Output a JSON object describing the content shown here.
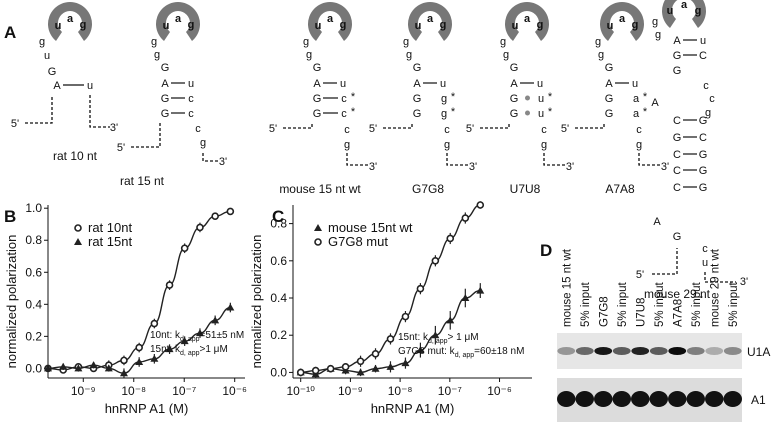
{
  "panel_labels": [
    "A",
    "B",
    "C",
    "D"
  ],
  "structures": [
    {
      "caption": "rat 10 nt",
      "letters": [
        "g",
        "u",
        "u",
        "a",
        "g",
        "G",
        "A",
        "u",
        "5'",
        "3'"
      ]
    },
    {
      "caption": "rat 15 nt",
      "letters": [
        "g",
        "g",
        "u",
        "a",
        "g",
        "G",
        "A",
        "u",
        "G",
        "c",
        "G",
        "c",
        "c",
        "g",
        "5'",
        "3'"
      ]
    },
    {
      "caption": "mouse 15 nt wt",
      "letters": [
        "g",
        "g",
        "u",
        "a",
        "g",
        "G",
        "A",
        "u",
        "G",
        "c",
        "*",
        "G",
        "c",
        "*",
        "c",
        "g",
        "5'",
        "3'"
      ]
    },
    {
      "caption": "G7G8",
      "letters": [
        "g",
        "g",
        "u",
        "a",
        "g",
        "G",
        "A",
        "u",
        "G",
        "g",
        "*",
        "G",
        "g",
        "*",
        "c",
        "g",
        "5'",
        "3'"
      ]
    },
    {
      "caption": "U7U8",
      "letters": [
        "g",
        "g",
        "u",
        "a",
        "g",
        "G",
        "A",
        "u",
        "G",
        "u",
        "*",
        "G",
        "u",
        "*",
        "c",
        "g",
        "5'",
        "3'"
      ]
    },
    {
      "caption": "A7A8",
      "letters": [
        "g",
        "g",
        "u",
        "a",
        "g",
        "G",
        "A",
        "u",
        "G",
        "a",
        "*",
        "G",
        "a",
        "*",
        "c",
        "g",
        "5'",
        "3'"
      ]
    },
    {
      "caption": "mouse 29 nt",
      "letters": [
        "g",
        "g",
        "u",
        "a",
        "g",
        "A",
        "u",
        "G",
        "C",
        "G",
        "c",
        "c",
        "g",
        "A",
        "C",
        "G",
        "G",
        "C",
        "C",
        "G",
        "C",
        "G",
        "C",
        "G",
        "A",
        "G",
        "c",
        "u",
        "5'",
        "3'"
      ]
    }
  ],
  "chart_data": [
    {
      "type": "line",
      "x_label": "hnRNP A1 (M)",
      "y_label": "normalized polarization",
      "log_x": true,
      "xlim": [
        2e-10,
        1.6e-06
      ],
      "ylim": [
        -0.06,
        1.02
      ],
      "xticks": [
        {
          "value": 1e-09,
          "label": "10⁻⁹"
        },
        {
          "value": 1e-08,
          "label": "10⁻⁸"
        },
        {
          "value": 1e-07,
          "label": "10⁻⁷"
        },
        {
          "value": 1e-06,
          "label": "10⁻⁶"
        }
      ],
      "yticks": [
        {
          "value": 0,
          "label": "0.0"
        },
        {
          "value": 0.2,
          "label": "0.2"
        },
        {
          "value": 0.4,
          "label": "0.4"
        },
        {
          "value": 0.6,
          "label": "0.6"
        },
        {
          "value": 0.8,
          "label": "0.8"
        },
        {
          "value": 1,
          "label": "1.0"
        }
      ],
      "x": [
        2e-10,
        4e-10,
        8e-10,
        1.6e-09,
        3.2e-09,
        6.4e-09,
        1.28e-08,
        2.56e-08,
        5.12e-08,
        1.02e-07,
        2.05e-07,
        4.1e-07,
        8.2e-07
      ],
      "series": [
        {
          "name": "rat 10nt",
          "marker": "circle",
          "color": "#222",
          "values": [
            0,
            -0.01,
            0.01,
            0,
            0.02,
            0.05,
            0.13,
            0.28,
            0.52,
            0.75,
            0.88,
            0.95,
            0.98
          ],
          "errors": [
            0.02,
            0.02,
            0.02,
            0.02,
            0.03,
            0.03,
            0.03,
            0.03,
            0.03,
            0.03,
            0.03,
            0.02,
            0.02
          ]
        },
        {
          "name": "rat 15nt",
          "marker": "triangle",
          "color": "#222",
          "values": [
            0,
            0.01,
            0,
            0.02,
            0,
            -0.03,
            0.04,
            0.06,
            0.12,
            0.17,
            0.22,
            0.3,
            0.38
          ],
          "errors": [
            0.02,
            0.02,
            0.02,
            0.02,
            0.02,
            0.03,
            0.03,
            0.03,
            0.03,
            0.03,
            0.03,
            0.03,
            0.03
          ]
        }
      ],
      "annotations": [
        {
          "text": "10nt:  k",
          "sub": "d, app",
          "after": "=51±5 nM"
        },
        {
          "text": "15nt:  k",
          "sub": "d, app",
          "after": ">1 μM"
        }
      ]
    },
    {
      "type": "line",
      "x_label": "hnRNP A1 (M)",
      "y_label": "normalized polarization",
      "log_x": true,
      "xlim": [
        7e-11,
        4.5e-06
      ],
      "ylim": [
        -0.03,
        0.9
      ],
      "xticks": [
        {
          "value": 1e-10,
          "label": "10⁻¹⁰"
        },
        {
          "value": 1e-09,
          "label": "10⁻⁹"
        },
        {
          "value": 1e-08,
          "label": "10⁻⁸"
        },
        {
          "value": 1e-07,
          "label": "10⁻⁷"
        },
        {
          "value": 1e-06,
          "label": "10⁻⁶"
        }
      ],
      "yticks": [
        {
          "value": 0,
          "label": "0.0"
        },
        {
          "value": 0.2,
          "label": "0.2"
        },
        {
          "value": 0.4,
          "label": "0.4"
        },
        {
          "value": 0.6,
          "label": "0.6"
        },
        {
          "value": 0.8,
          "label": "0.8"
        }
      ],
      "x": [
        1e-10,
        2e-10,
        4e-10,
        8e-10,
        1.6e-09,
        3.2e-09,
        6.4e-09,
        1.28e-08,
        2.56e-08,
        5.12e-08,
        1.02e-07,
        2.05e-07,
        4.1e-07
      ],
      "series": [
        {
          "name": "mouse 15nt wt",
          "marker": "triangle",
          "color": "#222",
          "values": [
            0,
            -0.01,
            0.02,
            0.01,
            0,
            0.02,
            0.03,
            0.05,
            0.12,
            0.2,
            0.28,
            0.4,
            0.44
          ],
          "errors": [
            0.02,
            0.02,
            0.02,
            0.02,
            0.02,
            0.02,
            0.03,
            0.03,
            0.04,
            0.05,
            0.05,
            0.05,
            0.04
          ]
        },
        {
          "name": "G7G8 mut",
          "marker": "circle",
          "color": "#222",
          "values": [
            0,
            0.01,
            0.02,
            0.03,
            0.06,
            0.1,
            0.18,
            0.3,
            0.45,
            0.6,
            0.72,
            0.83,
            0.9
          ],
          "errors": [
            0.02,
            0.02,
            0.02,
            0.02,
            0.03,
            0.03,
            0.03,
            0.03,
            0.03,
            0.03,
            0.03,
            0.03,
            0.02
          ]
        }
      ],
      "annotations": [
        {
          "text": "15nt:  k",
          "sub": "d, app",
          "after": "> 1 μM"
        },
        {
          "text": "G7G8 mut:  k",
          "sub": "d, app",
          "after": "=60±18 nM"
        }
      ]
    }
  ],
  "gel": {
    "lanes": [
      "mouse 15 nt wt",
      "5% input",
      "G7G8",
      "5% input",
      "U7U8",
      "5% input",
      "A7A8",
      "5% input",
      "mouse 29 nt wt",
      "5% input"
    ],
    "bands": [
      "U1A",
      "A1"
    ]
  }
}
